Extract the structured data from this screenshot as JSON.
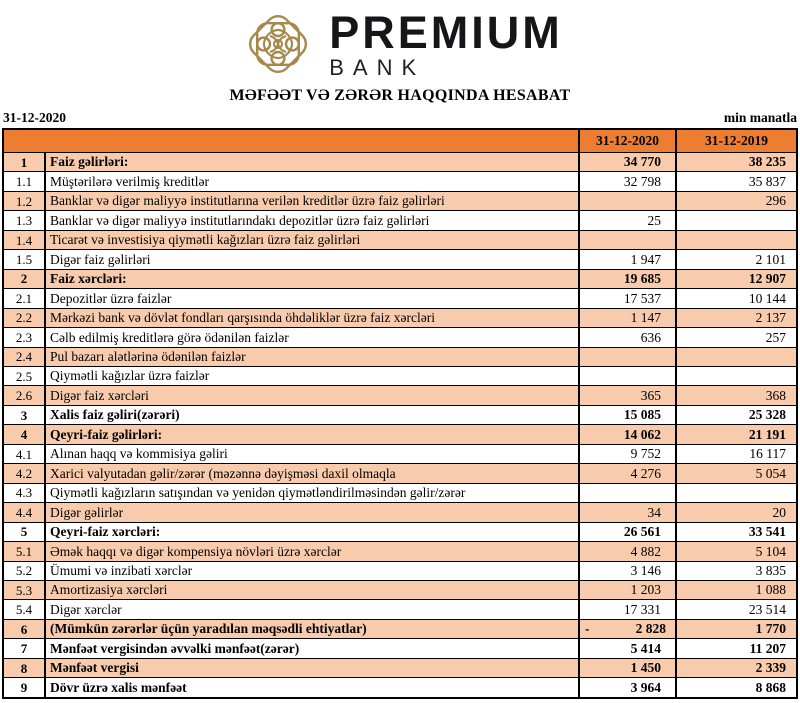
{
  "logo": {
    "emblem": "interlaced-knot-emblem",
    "emblem_color": "#A6894B",
    "brand_line1": "PREMIUM",
    "brand_line2": "BANK"
  },
  "title": "MƏFƏƏT VƏ ZƏRƏR HAQQINDA HESABAT",
  "meta": {
    "report_date": "31-12-2020",
    "units_note": "min manatla"
  },
  "table": {
    "columns": {
      "col_2020": "31-12-2020",
      "col_2019": "31-12-2019"
    },
    "colors": {
      "header_bg": "#ED7D31",
      "shaded_row_bg": "#F8CBAD",
      "border": "#000000"
    },
    "rows": [
      {
        "no": "1",
        "label": "Faiz gəlirləri:",
        "v2020": "34 770",
        "v2019": "38 235"
      },
      {
        "no": "1.1",
        "label": "Müştərilərə verilmiş kreditlər",
        "v2020": "32 798",
        "v2019": "35 837"
      },
      {
        "no": "1.2",
        "label": "Banklar və digər maliyyə institutlarına verilən kreditlər üzrə faiz gəlirləri",
        "v2020": "",
        "v2019": "296"
      },
      {
        "no": "1.3",
        "label": "Banklar və digər maliyyə institutlarındakı depozitlər üzrə faiz gəlirləri",
        "v2020": "25",
        "v2019": ""
      },
      {
        "no": "1.4",
        "label": "Ticarət və investisiya qiymətli kağızları üzrə faiz gəlirləri",
        "v2020": "",
        "v2019": ""
      },
      {
        "no": "1.5",
        "label": "Digər faiz gəlirləri",
        "v2020": "1 947",
        "v2019": "2 101"
      },
      {
        "no": "2",
        "label": "Faiz xərcləri:",
        "v2020": "19 685",
        "v2019": "12 907"
      },
      {
        "no": "2.1",
        "label": "Depozitlər üzrə faizlər",
        "v2020": "17 537",
        "v2019": "10 144"
      },
      {
        "no": "2.2",
        "label": "Mərkəzi bank və dövlət fondları qarşısında öhdəliklər üzrə faiz xərcləri",
        "v2020": "1 147",
        "v2019": "2 137"
      },
      {
        "no": "2.3",
        "label": "Cəlb edilmiş kreditlərə görə ödənilən faizlər",
        "v2020": "636",
        "v2019": "257"
      },
      {
        "no": "2.4",
        "label": "Pul bazarı alətlərinə ödənilən faizlər",
        "v2020": "",
        "v2019": ""
      },
      {
        "no": "2.5",
        "label": "Qiymətli kağızlar üzrə faizlər",
        "v2020": "",
        "v2019": ""
      },
      {
        "no": "2.6",
        "label": "Digər faiz xərcləri",
        "v2020": "365",
        "v2019": "368"
      },
      {
        "no": "3",
        "label": "Xalis faiz gəliri(zərəri)",
        "v2020": "15 085",
        "v2019": "25 328"
      },
      {
        "no": "4",
        "label": "Qeyri-faiz gəlirləri:",
        "v2020": "14 062",
        "v2019": "21 191"
      },
      {
        "no": "4.1",
        "label": "Alınan haqq və kommisiya gəliri",
        "v2020": "9 752",
        "v2019": "16 117"
      },
      {
        "no": "4.2",
        "label": "Xarici valyutadan gəlir/zərər (məzənnə dəyişməsi daxil olmaqla",
        "v2020": "4 276",
        "v2019": "5 054"
      },
      {
        "no": "4.3",
        "label": "Qiymətli kağızların satışından və yenidən qiymətləndirilməsindən gəlir/zərər",
        "v2020": "",
        "v2019": ""
      },
      {
        "no": "4.4",
        "label": "Digər gəlirlər",
        "v2020": "34",
        "v2019": "20"
      },
      {
        "no": "5",
        "label": "Qeyri-faiz xərcləri:",
        "v2020": "26 561",
        "v2019": "33 541"
      },
      {
        "no": "5.1",
        "label": "Əmək haqqı və digər kompensiya növləri üzrə xərclər",
        "v2020": "4 882",
        "v2019": "5 104"
      },
      {
        "no": "5.2",
        "label": "Ümumi və inzibati xərclər",
        "v2020": "3 146",
        "v2019": "3 835"
      },
      {
        "no": "5.3",
        "label": "Amortizasiya xərcləri",
        "v2020": "1 203",
        "v2019": "1 088"
      },
      {
        "no": "5.4",
        "label": "Digər xərclər",
        "v2020": "17 331",
        "v2019": "23 514"
      },
      {
        "no": "6",
        "label": "(Mümkün zərərlər üçün yaradılan məqsədli ehtiyatlar)",
        "v2020_prefix": "-",
        "v2020": "2 828",
        "v2019": "1 770"
      },
      {
        "no": "7",
        "label": "Mənfəət vergisindən əvvəlki mənfəət(zərər)",
        "v2020": "5 414",
        "v2019": "11 207"
      },
      {
        "no": "8",
        "label": "Mənfəət vergisi",
        "v2020": "1 450",
        "v2019": "2 339"
      },
      {
        "no": "9",
        "label": "Dövr üzrə xalis mənfəət",
        "v2020": "3 964",
        "v2019": "8 868"
      }
    ]
  }
}
